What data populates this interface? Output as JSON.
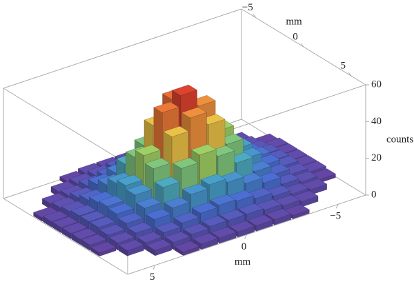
{
  "chart_data": {
    "type": "bar3d",
    "x": [
      -6,
      -5,
      -4,
      -3,
      -2,
      -1,
      0,
      1,
      2,
      3,
      4,
      5,
      6
    ],
    "y": [
      -6,
      -5,
      -4,
      -3,
      -2,
      -1,
      0,
      1,
      2,
      3,
      4,
      5,
      6
    ],
    "values": [
      [
        0,
        0,
        0,
        2,
        3,
        3,
        3,
        3,
        3,
        2,
        0,
        0,
        0
      ],
      [
        0,
        0,
        3,
        4,
        5,
        6,
        6,
        6,
        5,
        4,
        3,
        0,
        0
      ],
      [
        0,
        3,
        4,
        6,
        8,
        10,
        11,
        10,
        8,
        6,
        4,
        3,
        0
      ],
      [
        2,
        4,
        6,
        10,
        13,
        17,
        19,
        17,
        13,
        10,
        6,
        4,
        2
      ],
      [
        3,
        5,
        8,
        13,
        21,
        28,
        32,
        28,
        21,
        13,
        8,
        5,
        3
      ],
      [
        3,
        6,
        10,
        17,
        28,
        42,
        53,
        42,
        28,
        17,
        10,
        6,
        3
      ],
      [
        3,
        6,
        11,
        19,
        32,
        49,
        58,
        52,
        32,
        19,
        11,
        6,
        3
      ],
      [
        3,
        6,
        10,
        17,
        28,
        42,
        49,
        42,
        28,
        17,
        10,
        6,
        3
      ],
      [
        3,
        5,
        8,
        13,
        21,
        28,
        32,
        28,
        21,
        13,
        8,
        5,
        3
      ],
      [
        2,
        4,
        6,
        10,
        13,
        17,
        19,
        17,
        13,
        10,
        6,
        4,
        2
      ],
      [
        0,
        3,
        4,
        6,
        8,
        10,
        11,
        10,
        8,
        6,
        4,
        3,
        0
      ],
      [
        0,
        0,
        3,
        4,
        5,
        6,
        6,
        6,
        5,
        4,
        3,
        0,
        0
      ],
      [
        0,
        0,
        0,
        2,
        3,
        3,
        3,
        3,
        3,
        2,
        0,
        0,
        0
      ]
    ],
    "xlabel": "mm",
    "ylabel": "mm",
    "zlabel": "counts",
    "xlim": [
      -6.5,
      6.5
    ],
    "ylim": [
      -6.5,
      6.5
    ],
    "zlim": [
      0,
      60
    ],
    "xticks": [
      5,
      0,
      {
        "value": -5,
        "label": "−5"
      }
    ],
    "yticks": [
      {
        "value": -5,
        "label": "−5"
      },
      0,
      5
    ],
    "zticks": [
      0,
      20,
      40,
      60
    ],
    "colormap": [
      "#6a3d9a",
      "#4b6fd1",
      "#46a6c9",
      "#8ecf6a",
      "#e8d04a",
      "#f08a3a",
      "#d7322a"
    ],
    "box": true
  }
}
